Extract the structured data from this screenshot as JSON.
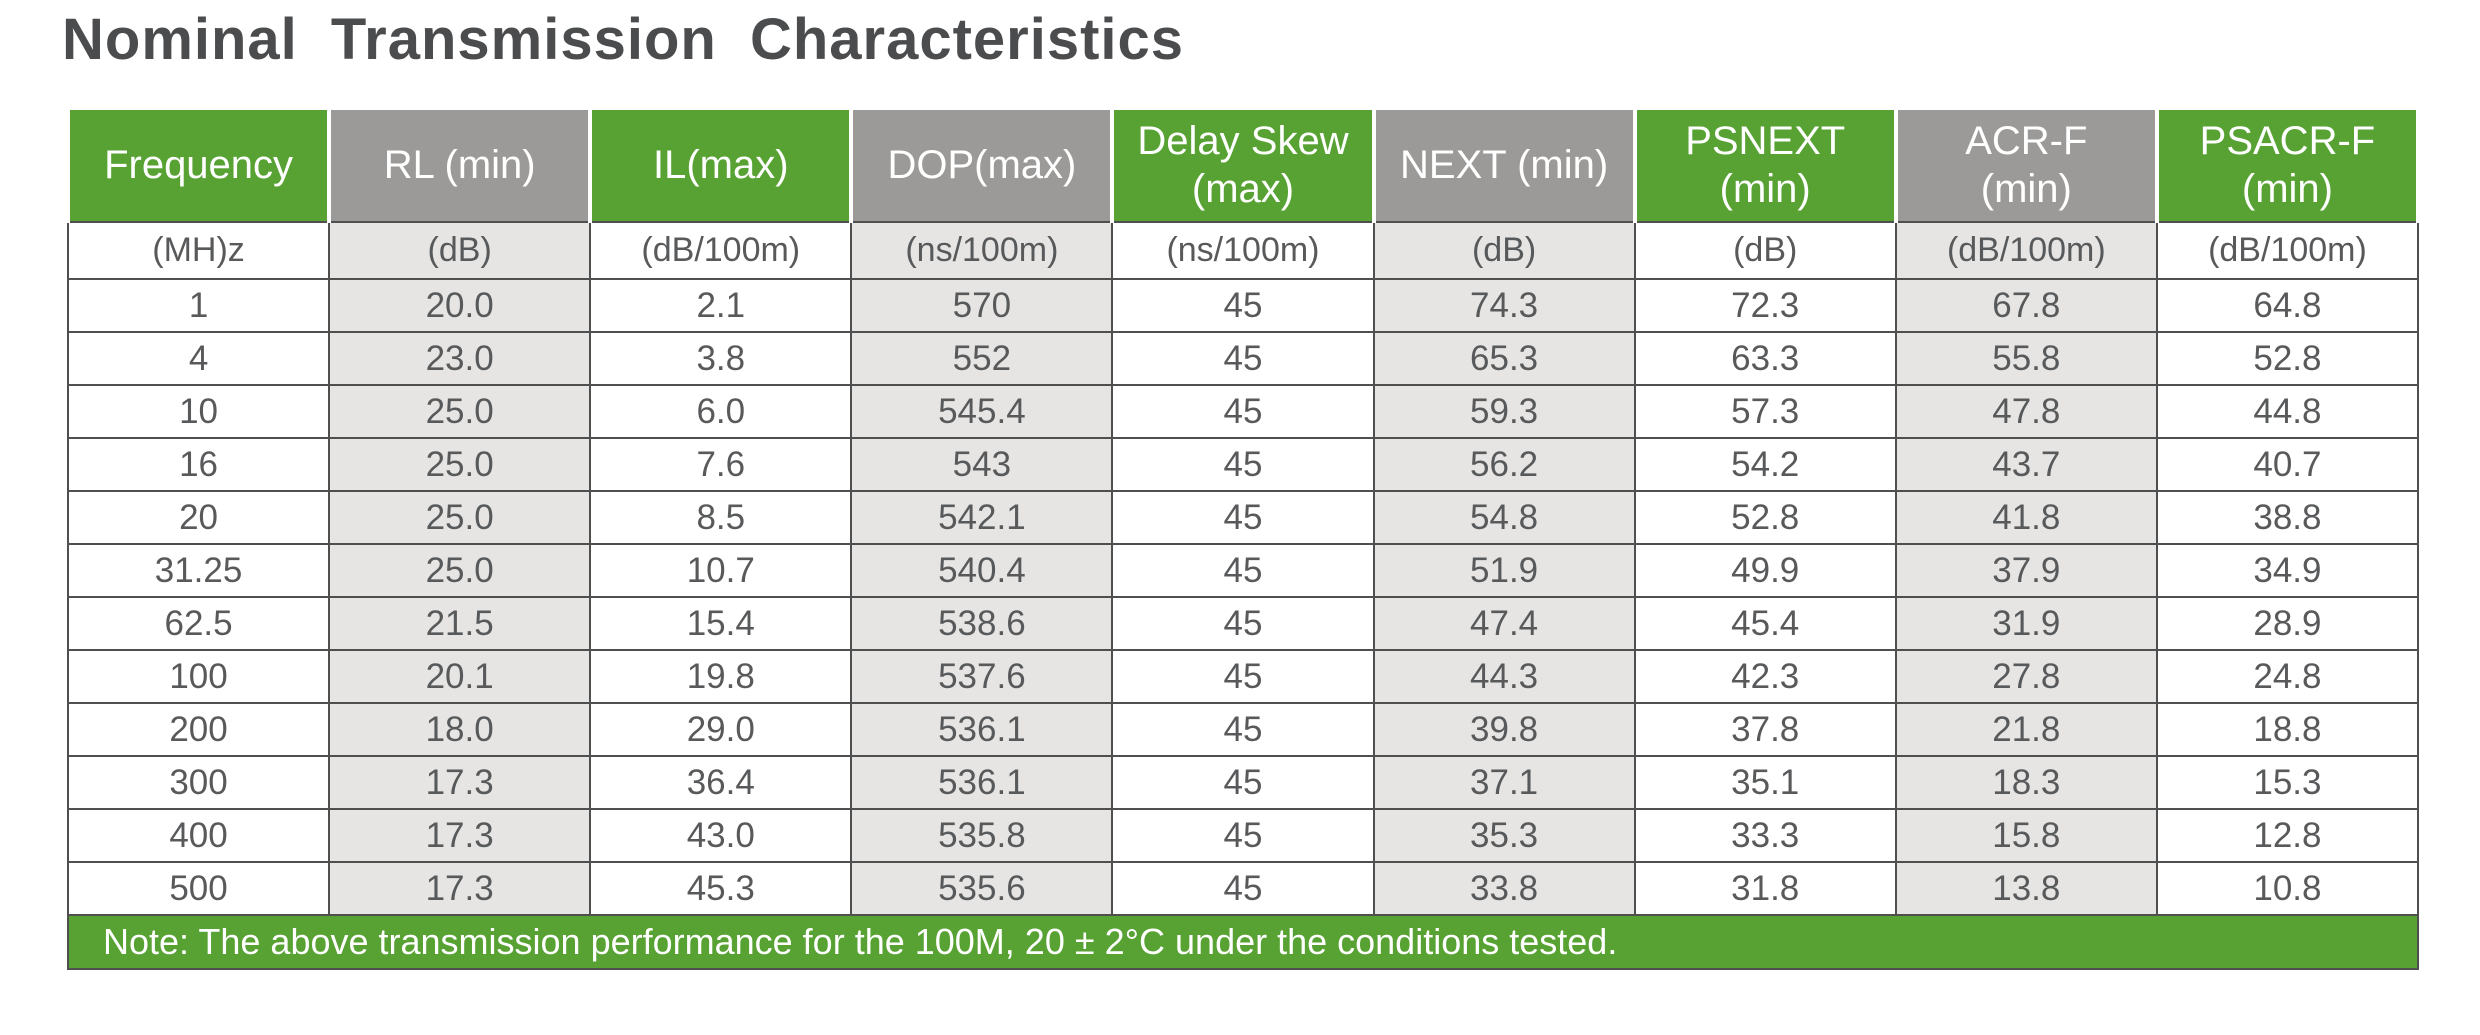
{
  "title": "Nominal Transmission Characteristics",
  "colors": {
    "header_green": "#57a233",
    "header_gray": "#9b9a98",
    "cell_shade_gray": "#e6e5e3",
    "body_text": "#58595b",
    "header_text": "#ffffff",
    "title_text": "#4b4c4e",
    "border": "#4f4f4f"
  },
  "table": {
    "columns": [
      {
        "line1": "Frequency",
        "unit": "(MH)z"
      },
      {
        "line1": "RL (min)",
        "unit": "(dB)"
      },
      {
        "line1": "IL(max)",
        "unit": "(dB/100m)"
      },
      {
        "line1": "DOP(max)",
        "unit": "(ns/100m)"
      },
      {
        "line1": "Delay Skew",
        "line2": "(max)",
        "unit": "(ns/100m)"
      },
      {
        "line1": "NEXT (min)",
        "unit": "(dB)"
      },
      {
        "line1": "PSNEXT",
        "line2": "(min)",
        "unit": "(dB)"
      },
      {
        "line1": "ACR-F",
        "line2": "(min)",
        "unit": "(dB/100m)"
      },
      {
        "line1": "PSACR-F",
        "line2": "(min)",
        "unit": "(dB/100m)"
      }
    ],
    "rows": [
      [
        "1",
        "20.0",
        "2.1",
        "570",
        "45",
        "74.3",
        "72.3",
        "67.8",
        "64.8"
      ],
      [
        "4",
        "23.0",
        "3.8",
        "552",
        "45",
        "65.3",
        "63.3",
        "55.8",
        "52.8"
      ],
      [
        "10",
        "25.0",
        "6.0",
        "545.4",
        "45",
        "59.3",
        "57.3",
        "47.8",
        "44.8"
      ],
      [
        "16",
        "25.0",
        "7.6",
        "543",
        "45",
        "56.2",
        "54.2",
        "43.7",
        "40.7"
      ],
      [
        "20",
        "25.0",
        "8.5",
        "542.1",
        "45",
        "54.8",
        "52.8",
        "41.8",
        "38.8"
      ],
      [
        "31.25",
        "25.0",
        "10.7",
        "540.4",
        "45",
        "51.9",
        "49.9",
        "37.9",
        "34.9"
      ],
      [
        "62.5",
        "21.5",
        "15.4",
        "538.6",
        "45",
        "47.4",
        "45.4",
        "31.9",
        "28.9"
      ],
      [
        "100",
        "20.1",
        "19.8",
        "537.6",
        "45",
        "44.3",
        "42.3",
        "27.8",
        "24.8"
      ],
      [
        "200",
        "18.0",
        "29.0",
        "536.1",
        "45",
        "39.8",
        "37.8",
        "21.8",
        "18.8"
      ],
      [
        "300",
        "17.3",
        "36.4",
        "536.1",
        "45",
        "37.1",
        "35.1",
        "18.3",
        "15.3"
      ],
      [
        "400",
        "17.3",
        "43.0",
        "535.8",
        "45",
        "35.3",
        "33.3",
        "15.8",
        "12.8"
      ],
      [
        "500",
        "17.3",
        "45.3",
        "535.6",
        "45",
        "33.8",
        "31.8",
        "13.8",
        "10.8"
      ]
    ],
    "note": "Note: The above transmission performance for the 100M, 20 ± 2°C under the conditions tested."
  }
}
